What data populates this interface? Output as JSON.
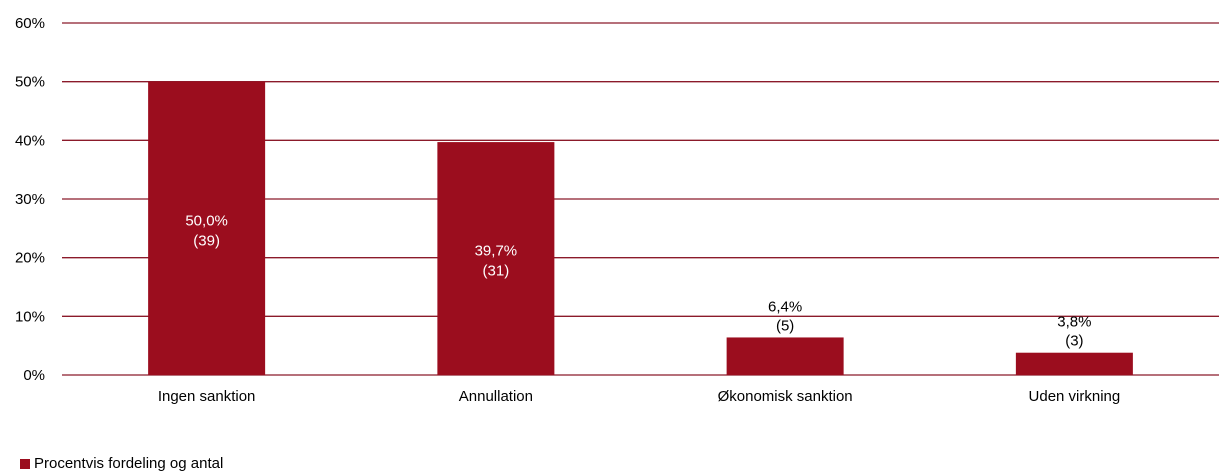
{
  "chart_data": {
    "type": "bar",
    "categories": [
      "Ingen sanktion",
      "Annullation",
      "Økonomisk sanktion",
      "Uden virkning"
    ],
    "series": [
      {
        "name": "Procentvis fordeling og antal",
        "values": [
          50.0,
          39.7,
          6.4,
          3.8
        ],
        "counts": [
          39,
          31,
          5,
          3
        ],
        "labels": [
          "50,0%",
          "39,7%",
          "6,4%",
          "3,8%"
        ],
        "count_labels": [
          "(39)",
          "(31)",
          "(5)",
          "(3)"
        ]
      }
    ],
    "ylim": [
      0,
      60
    ],
    "yticks": [
      0,
      10,
      20,
      30,
      40,
      50,
      60
    ],
    "ytick_labels": [
      "0%",
      "10%",
      "20%",
      "30%",
      "40%",
      "50%",
      "60%"
    ],
    "grid": true,
    "legend_position": "bottom-left",
    "colors": {
      "bar": "#9b0d1e",
      "grid": "#8b1a2a",
      "label_inside": "#ffffff",
      "label_outside": "#000000"
    }
  }
}
